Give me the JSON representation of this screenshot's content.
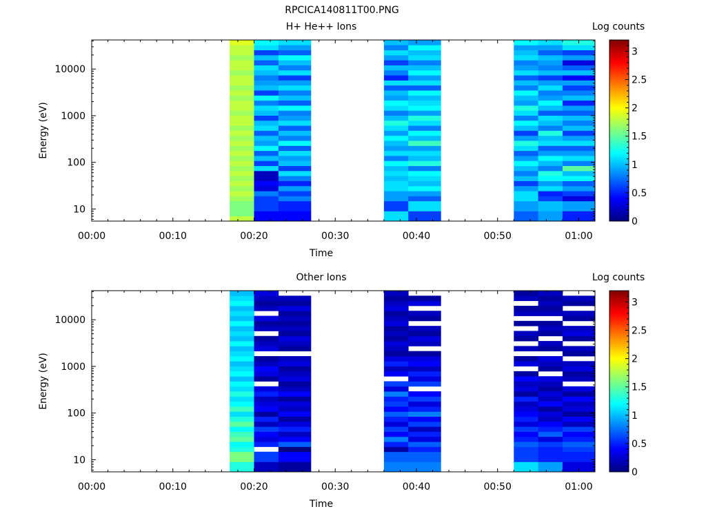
{
  "figure": {
    "title": "RPCICA140811T00.PNG"
  },
  "colorbar": {
    "label": "Log counts",
    "ticks": [
      "0",
      "0.5",
      "1",
      "1.5",
      "2",
      "2.5",
      "3"
    ],
    "range": [
      0,
      3.2
    ],
    "colormap": [
      "#00007f",
      "#0000ff",
      "#007fff",
      "#00ffff",
      "#7fff7f",
      "#ffff00",
      "#ff7f00",
      "#ff0000",
      "#7f0000"
    ]
  },
  "chart_data": [
    {
      "type": "heatmap",
      "title": "H+ He++ Ions",
      "xlabel": "Time",
      "ylabel": "Energy (eV)",
      "yscale": "log",
      "ylim": [
        5.5,
        42000
      ],
      "xlim": [
        "00:00",
        "01:02"
      ],
      "x_ticks": [
        "00:00",
        "00:10",
        "00:20",
        "00:30",
        "00:40",
        "00:50",
        "01:00"
      ],
      "y_ticks": [
        "10",
        "100",
        "1000",
        "10000"
      ],
      "columns": [
        {
          "start": "00:17",
          "end": "00:20",
          "values": [
            1.8,
            1.6,
            1.6,
            1.6,
            1.7,
            1.8,
            1.7,
            1.8,
            1.7,
            1.8,
            1.7,
            1.8,
            1.7,
            1.8,
            1.7,
            1.8,
            1.7,
            1.8,
            1.7,
            1.8,
            1.8,
            1.7,
            1.8,
            1.8,
            1.7,
            1.8,
            1.7,
            1.8,
            1.8,
            1.7,
            1.8,
            1.8,
            1.7,
            1.8,
            1.8,
            1.9
          ]
        },
        {
          "start": "00:20",
          "end": "00:23",
          "values": [
            0.4,
            0.4,
            0.6,
            0.6,
            0.6,
            0.8,
            0.3,
            0.4,
            0.2,
            0.2,
            1.1,
            0.6,
            1.0,
            0.7,
            1.2,
            0.9,
            1.0,
            0.7,
            1.1,
            1.0,
            0.6,
            1.0,
            1.1,
            0.8,
            1.2,
            0.6,
            1.0,
            0.9,
            0.8,
            1.0,
            1.1,
            0.7,
            1.0,
            0.6,
            1.1,
            1.2
          ]
        },
        {
          "start": "00:23",
          "end": "00:27",
          "values": [
            0.4,
            0.4,
            0.5,
            0.5,
            0.8,
            0.6,
            0.9,
            0.5,
            0.8,
            1.1,
            0.6,
            1.0,
            0.9,
            1.1,
            0.7,
            1.2,
            0.8,
            1.0,
            0.7,
            1.1,
            0.9,
            0.8,
            1.2,
            0.7,
            1.0,
            0.8,
            1.1,
            0.9,
            0.6,
            1.1,
            0.8,
            1.0,
            1.2,
            0.7,
            0.9,
            1.1
          ]
        },
        {
          "start": "00:36",
          "end": "00:39",
          "values": [
            1.1,
            1.1,
            0.6,
            0.6,
            0.9,
            0.9,
            1.1,
            1.1,
            1.0,
            1.1,
            1.0,
            1.2,
            0.8,
            1.1,
            0.9,
            1.0,
            1.2,
            0.9,
            1.1,
            1.3,
            1.0,
            0.8,
            1.1,
            1.2,
            0.9,
            1.0,
            0.7,
            1.1,
            0.5,
            0.8,
            1.0,
            0.6,
            0.9,
            1.1,
            0.8,
            1.0
          ]
        },
        {
          "start": "00:39",
          "end": "00:43",
          "values": [
            0.6,
            0.6,
            1.1,
            1.1,
            0.7,
            0.9,
            1.2,
            1.0,
            1.1,
            1.2,
            0.8,
            1.3,
            1.0,
            1.1,
            0.9,
            1.4,
            1.0,
            1.2,
            0.8,
            1.1,
            1.3,
            0.9,
            1.2,
            1.1,
            1.0,
            1.2,
            0.7,
            1.1,
            0.9,
            1.2,
            1.0,
            0.8,
            1.1,
            1.0,
            1.2,
            0.9
          ]
        },
        {
          "start": "00:52",
          "end": "00:55",
          "values": [
            0.7,
            0.7,
            0.9,
            0.9,
            1.1,
            1.1,
            0.9,
            0.6,
            1.0,
            0.8,
            1.0,
            1.2,
            0.9,
            0.7,
            1.1,
            1.3,
            0.9,
            0.6,
            1.0,
            1.2,
            0.8,
            1.1,
            1.3,
            0.9,
            1.0,
            1.2,
            0.8,
            1.0,
            0.7,
            1.1,
            0.9,
            0.8,
            1.1,
            1.0,
            0.9,
            1.2
          ]
        },
        {
          "start": "00:55",
          "end": "00:58",
          "values": [
            0.9,
            0.9,
            1.0,
            1.0,
            0.6,
            0.5,
            1.1,
            0.9,
            1.2,
            1.3,
            0.8,
            1.0,
            1.2,
            0.9,
            0.7,
            1.1,
            1.0,
            1.3,
            0.8,
            1.0,
            1.1,
            0.7,
            1.0,
            1.2,
            0.9,
            0.8,
            1.1,
            0.9,
            0.6,
            1.0,
            0.8,
            0.9,
            1.0,
            0.7,
            0.9,
            1.1
          ]
        },
        {
          "start": "00:58",
          "end": "01:02",
          "values": [
            0.5,
            0.5,
            0.9,
            0.9,
            0.3,
            0.6,
            0.9,
            0.7,
            1.2,
            1.0,
            1.5,
            0.8,
            1.1,
            0.9,
            0.7,
            1.1,
            0.9,
            0.6,
            1.0,
            0.8,
            1.0,
            0.7,
            0.9,
            0.5,
            1.0,
            0.8,
            0.6,
            0.9,
            0.4,
            1.0,
            0.7,
            0.3,
            0.9,
            0.6,
            1.1,
            1.3
          ]
        }
      ]
    },
    {
      "type": "heatmap",
      "title": "Other Ions",
      "xlabel": "Time",
      "ylabel": "Energy (eV)",
      "yscale": "log",
      "ylim": [
        5.5,
        42000
      ],
      "xlim": [
        "00:00",
        "01:02"
      ],
      "x_ticks": [
        "00:00",
        "00:10",
        "00:20",
        "00:30",
        "00:40",
        "00:50",
        "01:00"
      ],
      "y_ticks": [
        "10",
        "100",
        "1000",
        "10000"
      ],
      "columns": [
        {
          "start": "00:17",
          "end": "00:20",
          "values": [
            1.3,
            1.3,
            1.6,
            1.6,
            1.3,
            1.2,
            1.5,
            1.4,
            1.2,
            1.5,
            1.3,
            1.1,
            1.4,
            1.2,
            1.1,
            1.3,
            1.1,
            1.2,
            1.0,
            1.2,
            1.1,
            1.0,
            1.2,
            1.1,
            1.0,
            1.2,
            1.0,
            1.1,
            1.0,
            1.2,
            1.0,
            1.1,
            1.0,
            1.2,
            1.1,
            1.0
          ]
        },
        {
          "start": "00:20",
          "end": "00:23",
          "values": [
            0.2,
            0.2,
            0.6,
            0.6,
            null,
            0.5,
            0.3,
            0.4,
            0.6,
            0.2,
            0.5,
            0.1,
            0.4,
            0.3,
            0.2,
            0.5,
            0.3,
            null,
            0.1,
            0.3,
            0.4,
            0.2,
            0.1,
            null,
            0.3,
            0.2,
            0.1,
            null,
            0.2,
            0.1,
            0.3,
            null,
            0.2,
            0.1,
            0.2,
            0.3
          ]
        },
        {
          "start": "00:23",
          "end": "00:27",
          "values": [
            0.1,
            0.1,
            0.4,
            0.4,
            0.0,
            0.7,
            0.4,
            0.2,
            0.5,
            0.3,
            0.1,
            0.4,
            0.2,
            0.3,
            0.1,
            0.4,
            0.2,
            0.1,
            0.3,
            0.2,
            0.1,
            0.3,
            0.2,
            null,
            0.1,
            0.2,
            0.3,
            0.1,
            0.2,
            0.1,
            0.2,
            0.1,
            0.3,
            0.1,
            0.2,
            null
          ]
        },
        {
          "start": "00:36",
          "end": "00:39",
          "values": [
            0.8,
            0.8,
            0.7,
            0.7,
            0.1,
            0.5,
            0.8,
            0.4,
            0.6,
            0.3,
            0.5,
            0.7,
            0.4,
            0.6,
            0.5,
            0.8,
            0.3,
            0.6,
            null,
            0.4,
            0.2,
            0.5,
            0.3,
            0.1,
            0.2,
            0.3,
            0.1,
            0.2,
            0.1,
            0.3,
            0.2,
            0.1,
            0.3,
            0.2,
            0.1,
            0.2
          ]
        },
        {
          "start": "00:39",
          "end": "00:43",
          "values": [
            0.8,
            0.8,
            0.7,
            0.7,
            0.5,
            0.7,
            0.3,
            0.5,
            0.2,
            0.6,
            0.4,
            0.8,
            0.5,
            0.3,
            0.6,
            0.4,
            null,
            0.6,
            0.3,
            0.5,
            0.2,
            0.4,
            0.3,
            0.1,
            null,
            0.2,
            0.3,
            0.1,
            0.2,
            null,
            0.1,
            0.2,
            null,
            0.3,
            0.1,
            null
          ]
        },
        {
          "start": "00:52",
          "end": "00:55",
          "values": [
            1.1,
            1.1,
            0.6,
            0.6,
            0.6,
            0.7,
            0.5,
            0.4,
            0.6,
            0.3,
            0.5,
            0.4,
            0.3,
            0.2,
            0.5,
            0.1,
            0.3,
            0.2,
            0.4,
            0.1,
            null,
            0.3,
            0.1,
            null,
            0.2,
            null,
            0.1,
            0.2,
            null,
            0.1,
            null,
            0.2,
            0.1,
            null,
            0.2,
            0.1
          ]
        },
        {
          "start": "00:55",
          "end": "00:58",
          "values": [
            0.9,
            0.9,
            0.5,
            0.5,
            0.5,
            0.6,
            0.3,
            0.7,
            0.5,
            0.4,
            0.2,
            0.3,
            0.1,
            0.4,
            0.2,
            0.3,
            0.1,
            0.2,
            0.3,
            null,
            0.1,
            0.2,
            0.3,
            null,
            0.1,
            0.2,
            null,
            0.1,
            0.2,
            0.1,
            null,
            0.2,
            0.1,
            0.2,
            0.1,
            0.2
          ]
        },
        {
          "start": "00:58",
          "end": "01:02",
          "values": [
            0.3,
            0.3,
            0.5,
            0.5,
            0.6,
            0.7,
            0.5,
            0.4,
            0.6,
            0.2,
            0.4,
            0.1,
            0.3,
            0.2,
            0.4,
            0.1,
            0.3,
            null,
            0.2,
            0.1,
            0.3,
            0.2,
            null,
            0.1,
            0.2,
            null,
            0.1,
            0.3,
            0.2,
            null,
            0.1,
            0.2,
            null,
            0.1,
            0.2,
            null
          ]
        }
      ]
    }
  ]
}
